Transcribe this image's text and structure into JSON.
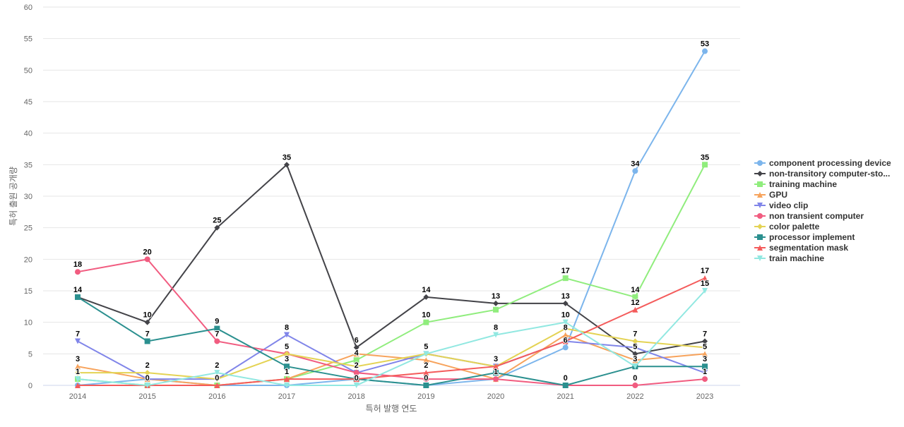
{
  "chart_data": {
    "type": "line",
    "title": "",
    "xlabel": "특허 발행 연도",
    "ylabel": "특허 출원 공개량",
    "ylim": [
      0,
      60
    ],
    "yticks": [
      0,
      5,
      10,
      15,
      20,
      25,
      30,
      35,
      40,
      45,
      50,
      55,
      60
    ],
    "grid": true,
    "legend_position": "right",
    "categories": [
      "2014",
      "2015",
      "2016",
      "2017",
      "2018",
      "2019",
      "2020",
      "2021",
      "2022",
      "2023"
    ],
    "series": [
      {
        "name": "component processing device",
        "color": "#7cb5ec",
        "marker": "circle",
        "values": [
          0,
          1,
          0,
          0,
          1,
          0,
          1,
          6,
          34,
          53
        ]
      },
      {
        "name": "non-transitory computer-sto...",
        "color": "#434348",
        "marker": "diamond",
        "values": [
          14,
          10,
          25,
          35,
          6,
          14,
          13,
          13,
          5,
          7
        ]
      },
      {
        "name": "training machine",
        "color": "#90ed7d",
        "marker": "square",
        "values": [
          1,
          0,
          0,
          1,
          4,
          10,
          12,
          17,
          14,
          35
        ]
      },
      {
        "name": "GPU",
        "color": "#f7a35c",
        "marker": "triangle",
        "values": [
          3,
          1,
          0,
          1,
          5,
          4,
          1,
          8,
          4,
          5
        ]
      },
      {
        "name": "video clip",
        "color": "#8085e9",
        "marker": "triangle-down",
        "values": [
          7,
          1,
          1,
          8,
          2,
          5,
          3,
          7,
          6,
          2
        ]
      },
      {
        "name": "non transient computer",
        "color": "#f15c80",
        "marker": "circle",
        "values": [
          18,
          20,
          7,
          5,
          2,
          1,
          1,
          0,
          0,
          1
        ]
      },
      {
        "name": "color palette",
        "color": "#e4d354",
        "marker": "diamond",
        "values": [
          2,
          2,
          1,
          5,
          3,
          5,
          3,
          9,
          7,
          6
        ]
      },
      {
        "name": "processor implement",
        "color": "#2b908f",
        "marker": "square",
        "values": [
          14,
          7,
          9,
          3,
          1,
          0,
          2,
          0,
          3,
          3
        ]
      },
      {
        "name": "segmentation mask",
        "color": "#f45b5b",
        "marker": "triangle",
        "values": [
          0,
          0,
          0,
          1,
          1,
          2,
          3,
          7,
          12,
          17
        ]
      },
      {
        "name": "train machine",
        "color": "#91e8e1",
        "marker": "triangle-down",
        "values": [
          1,
          0,
          2,
          0,
          0,
          5,
          8,
          10,
          3,
          15
        ]
      }
    ]
  }
}
